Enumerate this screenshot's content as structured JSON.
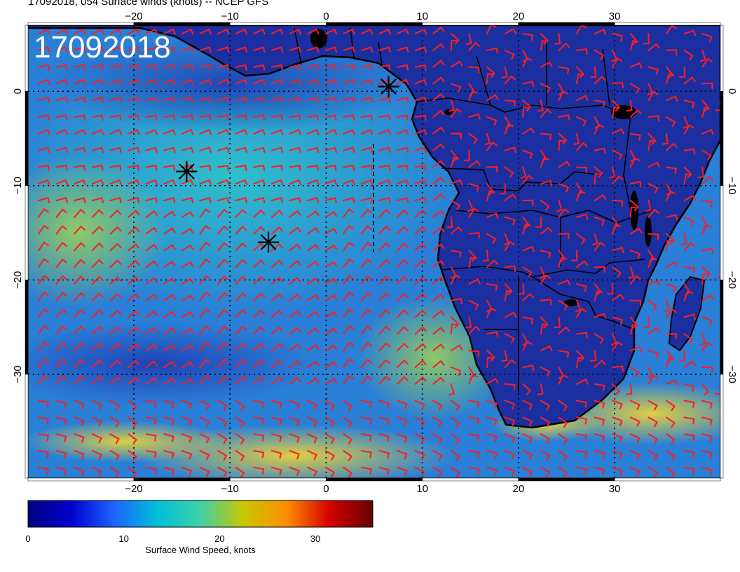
{
  "header": {
    "title": "17092018, 054 Surface winds (knots) -- NCEP GFS",
    "stamp": "17092018"
  },
  "map": {
    "lon_range": [
      -31,
      41
    ],
    "lat_range": [
      -41,
      7
    ],
    "top_lon_ticks": [
      "−20",
      "−10",
      "0",
      "10",
      "20",
      "30"
    ],
    "bottom_lon_ticks": [
      "−20",
      "−10",
      "0",
      "10",
      "20",
      "30"
    ],
    "left_lat_ticks": [
      "0",
      "−10",
      "−20",
      "−30"
    ],
    "right_lat_ticks": [
      "0",
      "−10",
      "−20",
      "−30"
    ],
    "lon_tick_values": [
      -20,
      -10,
      0,
      10,
      20,
      30
    ],
    "lat_tick_values": [
      0,
      -10,
      -20,
      -30
    ],
    "colors": {
      "ocean_low": "#0d2f9f",
      "ocean_mid": "#1fa8d8",
      "ocean_high": "#e0d23a",
      "land": "#1a2a9a",
      "barb": "#ff1e1e",
      "coast": "#000000"
    },
    "markers": [
      {
        "name": "star-marker",
        "lon": 6.5,
        "lat": 0.5
      },
      {
        "name": "star-marker",
        "lon": -14.5,
        "lat": -8.5
      },
      {
        "name": "star-marker",
        "lon": -6,
        "lat": -16
      }
    ]
  },
  "colorbar": {
    "label": "Surface Wind Speed, knots",
    "ticks": [
      "0",
      "10",
      "20",
      "30"
    ],
    "tick_values": [
      0,
      10,
      20,
      30
    ],
    "max": 36,
    "stops": [
      "#000080",
      "#0000cd",
      "#1e64ff",
      "#00bfd8",
      "#3fd0a8",
      "#c8c800",
      "#ff8c00",
      "#d40000",
      "#660000"
    ]
  }
}
